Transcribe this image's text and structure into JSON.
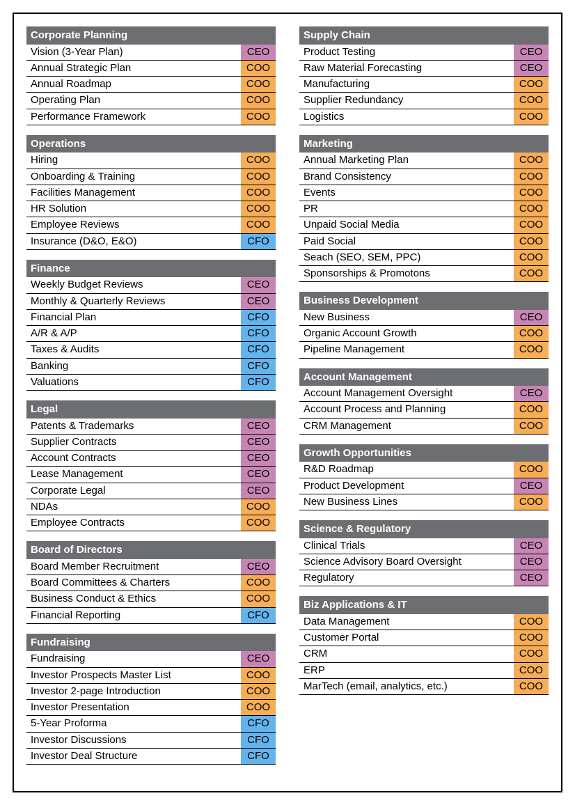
{
  "colors": {
    "header_bg": "#6d6e71",
    "header_fg": "#ffffff",
    "owners": {
      "CEO": "#c785b5",
      "COO": "#f6ad55",
      "CFO": "#63b3ed"
    }
  },
  "columns": [
    {
      "sections": [
        {
          "title": "Corporate Planning",
          "rows": [
            {
              "item": "Vision (3-Year Plan)",
              "owner": "CEO"
            },
            {
              "item": "Annual Strategic Plan",
              "owner": "COO"
            },
            {
              "item": "Annual Roadmap",
              "owner": "COO"
            },
            {
              "item": "Operating Plan",
              "owner": "COO"
            },
            {
              "item": "Performance Framework",
              "owner": "COO"
            }
          ]
        },
        {
          "title": "Operations",
          "rows": [
            {
              "item": "Hiring",
              "owner": "COO"
            },
            {
              "item": "Onboarding & Training",
              "owner": "COO"
            },
            {
              "item": "Facilities Management",
              "owner": "COO"
            },
            {
              "item": "HR Solution",
              "owner": "COO"
            },
            {
              "item": "Employee Reviews",
              "owner": "COO"
            },
            {
              "item": "Insurance (D&O, E&O)",
              "owner": "CFO"
            }
          ]
        },
        {
          "title": "Finance",
          "rows": [
            {
              "item": "Weekly Budget Reviews",
              "owner": "CEO"
            },
            {
              "item": "Monthly & Quarterly Reviews",
              "owner": "CEO"
            },
            {
              "item": "Financial Plan",
              "owner": "CFO"
            },
            {
              "item": "A/R & A/P",
              "owner": "CFO"
            },
            {
              "item": "Taxes & Audits",
              "owner": "CFO"
            },
            {
              "item": "Banking",
              "owner": "CFO"
            },
            {
              "item": "Valuations",
              "owner": "CFO"
            }
          ]
        },
        {
          "title": "Legal",
          "rows": [
            {
              "item": "Patents & Trademarks",
              "owner": "CEO"
            },
            {
              "item": "Supplier Contracts",
              "owner": "CEO"
            },
            {
              "item": "Account Contracts",
              "owner": "CEO"
            },
            {
              "item": "Lease Management",
              "owner": "CEO"
            },
            {
              "item": "Corporate Legal",
              "owner": "CEO"
            },
            {
              "item": "NDAs",
              "owner": "COO"
            },
            {
              "item": "Employee Contracts",
              "owner": "COO"
            }
          ]
        },
        {
          "title": "Board of Directors",
          "rows": [
            {
              "item": "Board Member Recruitment",
              "owner": "CEO"
            },
            {
              "item": "Board Committees & Charters",
              "owner": "COO"
            },
            {
              "item": "Business Conduct & Ethics",
              "owner": "COO"
            },
            {
              "item": "Financial Reporting",
              "owner": "CFO"
            }
          ]
        },
        {
          "title": "Fundraising",
          "rows": [
            {
              "item": "Fundraising",
              "owner": "CEO"
            },
            {
              "item": "Investor Prospects Master List",
              "owner": "COO"
            },
            {
              "item": "Investor 2-page Introduction",
              "owner": "COO"
            },
            {
              "item": "Investor Presentation",
              "owner": "COO"
            },
            {
              "item": "5-Year Proforma",
              "owner": "CFO"
            },
            {
              "item": "Investor Discussions",
              "owner": "CFO"
            },
            {
              "item": "Investor Deal Structure",
              "owner": "CFO"
            }
          ]
        }
      ]
    },
    {
      "sections": [
        {
          "title": "Supply Chain",
          "rows": [
            {
              "item": "Product Testing",
              "owner": "CEO"
            },
            {
              "item": "Raw Material Forecasting",
              "owner": "CEO"
            },
            {
              "item": "Manufacturing",
              "owner": "COO"
            },
            {
              "item": "Supplier Redundancy",
              "owner": "COO"
            },
            {
              "item": "Logistics",
              "owner": "COO"
            }
          ]
        },
        {
          "title": "Marketing",
          "rows": [
            {
              "item": "Annual Marketing Plan",
              "owner": "COO"
            },
            {
              "item": "Brand Consistency",
              "owner": "COO"
            },
            {
              "item": "Events",
              "owner": "COO"
            },
            {
              "item": "PR",
              "owner": "COO"
            },
            {
              "item": "Unpaid Social Media",
              "owner": "COO"
            },
            {
              "item": "Paid Social",
              "owner": "COO"
            },
            {
              "item": "Seach (SEO, SEM, PPC)",
              "owner": "COO"
            },
            {
              "item": "Sponsorships & Promotons",
              "owner": "COO"
            }
          ]
        },
        {
          "title": "Business Development",
          "rows": [
            {
              "item": "New Business",
              "owner": "CEO"
            },
            {
              "item": "Organic Account Growth",
              "owner": "COO"
            },
            {
              "item": "Pipeline Management",
              "owner": "COO"
            }
          ]
        },
        {
          "title": "Account Management",
          "rows": [
            {
              "item": "Account Management Oversight",
              "owner": "CEO"
            },
            {
              "item": "Account Process and Planning",
              "owner": "COO"
            },
            {
              "item": "CRM Management",
              "owner": "COO"
            }
          ]
        },
        {
          "title": "Growth Opportunities",
          "rows": [
            {
              "item": "R&D Roadmap",
              "owner": "COO"
            },
            {
              "item": "Product Development",
              "owner": "CEO"
            },
            {
              "item": "New Business Lines",
              "owner": "COO"
            }
          ]
        },
        {
          "title": "Science & Regulatory",
          "rows": [
            {
              "item": "Clinical Trials",
              "owner": "CEO"
            },
            {
              "item": "Science Advisory Board Oversight",
              "owner": "CEO"
            },
            {
              "item": "Regulatory",
              "owner": "CEO"
            }
          ]
        },
        {
          "title": "Biz Applications & IT",
          "rows": [
            {
              "item": "Data Management",
              "owner": "COO"
            },
            {
              "item": "Customer Portal",
              "owner": "COO"
            },
            {
              "item": "CRM",
              "owner": "COO"
            },
            {
              "item": "ERP",
              "owner": "COO"
            },
            {
              "item": "MarTech (email, analytics, etc.)",
              "owner": "COO"
            }
          ]
        }
      ]
    }
  ]
}
